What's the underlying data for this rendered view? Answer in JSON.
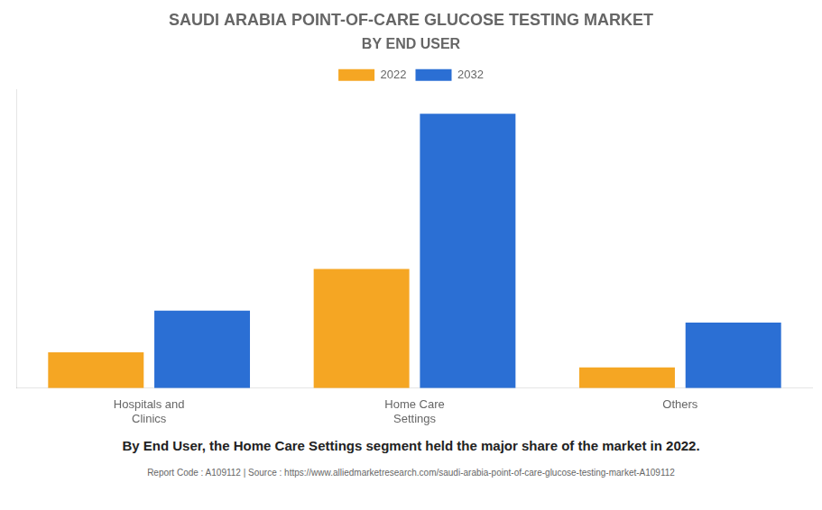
{
  "chart_data": {
    "type": "bar",
    "title": "SAUDI ARABIA POINT-OF-CARE GLUCOSE TESTING MARKET",
    "subtitle": "BY END USER",
    "annotations": [
      "By End User, the Home Care Settings segment held the major share of the market in 2022.",
      "Report Code : A109112  |  Source : https://www.alliedmarketresearch.com/saudi-arabia-point-of-care-glucose-testing-market-A109112"
    ],
    "categories": [
      "Hospitals and\nClinics",
      "Home Care\nSettings",
      "Others"
    ],
    "series": [
      {
        "name": "2022",
        "color": "#F5A623",
        "values": [
          0.12,
          0.4,
          0.07
        ]
      },
      {
        "name": "2032",
        "color": "#2B6FD4",
        "values": [
          0.26,
          0.92,
          0.22
        ]
      }
    ],
    "ylim": [
      0,
      1.0
    ],
    "grid": false,
    "legend": "top",
    "tick_labels": "x"
  }
}
